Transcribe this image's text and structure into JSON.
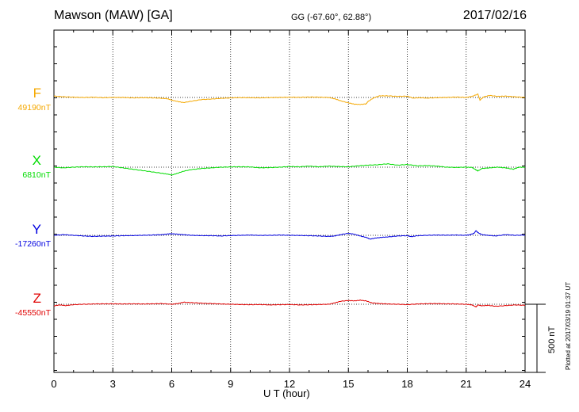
{
  "header": {
    "station": "Mawson (MAW)  [GA]",
    "coords": "GG (-67.60°,  62.88°)",
    "date": "2017/02/16"
  },
  "plotted_note": "Plotted at 2017/03/19 01:37  UT",
  "scale_label": "500 nT",
  "chart_data": {
    "type": "line",
    "xlabel": "U T (hour)",
    "x_ticks": [
      "0",
      "3",
      "6",
      "9",
      "12",
      "15",
      "18",
      "21",
      "24"
    ],
    "xlim": [
      0,
      24
    ],
    "grid": true,
    "scale_bar_nT": 500,
    "series": [
      {
        "name": "F",
        "baseline_label": "49190nT",
        "color": "#f5a800",
        "x": [
          0,
          0.5,
          1,
          1.5,
          2,
          2.5,
          3,
          3.5,
          4,
          4.5,
          5,
          5.5,
          5.8,
          6,
          6.3,
          6.6,
          7,
          7.5,
          8,
          8.5,
          9,
          9.5,
          10,
          10.5,
          11,
          11.5,
          12,
          12.5,
          13,
          13.5,
          14,
          14.3,
          14.6,
          15,
          15.3,
          15.6,
          15.9,
          16,
          16.3,
          16.6,
          17,
          17.5,
          18,
          18.3,
          18.6,
          19,
          19.5,
          20,
          20.5,
          21,
          21.3,
          21.6,
          21.7,
          21.9,
          22.2,
          22.6,
          23,
          23.5,
          24
        ],
        "y": [
          10,
          5,
          2,
          0,
          2,
          -2,
          0,
          0,
          -3,
          -2,
          -3,
          -6,
          -10,
          -20,
          -30,
          -38,
          -28,
          -16,
          -12,
          -7,
          -3,
          -1,
          -2,
          -3,
          -1,
          0,
          2,
          1,
          3,
          2,
          0,
          -10,
          -25,
          -40,
          -50,
          -52,
          -48,
          -30,
          -2,
          12,
          12,
          8,
          10,
          -5,
          -2,
          -5,
          -2,
          0,
          3,
          0,
          8,
          25,
          -20,
          5,
          15,
          8,
          10,
          5,
          0
        ]
      },
      {
        "name": "X",
        "baseline_label": "6810nT",
        "color": "#00dc00",
        "x": [
          0,
          0.5,
          1,
          1.5,
          2,
          2.5,
          3,
          3.5,
          4,
          4.5,
          5,
          5.5,
          5.8,
          6,
          6.3,
          6.6,
          7,
          7.5,
          8,
          8.5,
          9,
          9.5,
          10,
          10.5,
          11,
          11.5,
          12,
          12.5,
          13,
          13.5,
          14,
          14.5,
          15,
          15.5,
          16,
          16.5,
          17,
          17.5,
          18,
          18.5,
          19,
          19.5,
          20,
          20.5,
          21,
          21.3,
          21.5,
          21.6,
          21.8,
          22.2,
          22.6,
          23,
          23.4,
          23.7,
          24
        ],
        "y": [
          0,
          -5,
          0,
          3,
          2,
          3,
          5,
          -5,
          -15,
          -25,
          -35,
          -45,
          -52,
          -58,
          -45,
          -30,
          -18,
          -10,
          -5,
          0,
          2,
          3,
          2,
          -5,
          -3,
          0,
          5,
          3,
          8,
          3,
          8,
          5,
          3,
          10,
          15,
          18,
          25,
          15,
          20,
          10,
          12,
          8,
          0,
          -2,
          0,
          -2,
          -20,
          -28,
          -10,
          -5,
          0,
          -5,
          -15,
          0,
          0
        ]
      },
      {
        "name": "Y",
        "baseline_label": "-17260nT",
        "color": "#0000e0",
        "x": [
          0,
          0.5,
          1,
          1.5,
          2,
          2.5,
          3,
          3.5,
          4,
          4.5,
          5,
          5.5,
          5.8,
          6,
          6.3,
          6.6,
          7,
          7.5,
          8,
          8.5,
          9,
          9.5,
          10,
          10.5,
          11,
          11.5,
          12,
          12.5,
          13,
          13.5,
          14,
          14.3,
          14.6,
          15,
          15.3,
          15.6,
          15.9,
          16.1,
          16.4,
          16.7,
          17,
          17.5,
          18,
          18.2,
          18.5,
          19,
          19.5,
          20,
          20.5,
          21,
          21.2,
          21.4,
          21.5,
          21.6,
          21.8,
          22.1,
          22.5,
          23,
          23.5,
          24
        ],
        "y": [
          0,
          5,
          0,
          -5,
          -8,
          -6,
          -5,
          -3,
          -2,
          0,
          2,
          5,
          10,
          12,
          8,
          5,
          0,
          -2,
          -3,
          -5,
          -2,
          0,
          2,
          -1,
          0,
          2,
          0,
          -1,
          -3,
          -5,
          -8,
          -5,
          5,
          15,
          8,
          -5,
          -15,
          -28,
          -20,
          -15,
          -12,
          -5,
          -3,
          -10,
          -3,
          0,
          2,
          1,
          2,
          0,
          5,
          15,
          35,
          20,
          5,
          0,
          -5,
          5,
          0,
          2
        ]
      },
      {
        "name": "Z",
        "baseline_label": "-45550nT",
        "color": "#e00000",
        "x": [
          0,
          0.3,
          0.6,
          1,
          1.5,
          2,
          2.5,
          3,
          3.5,
          4,
          4.5,
          5,
          5.5,
          6,
          6.3,
          6.6,
          7,
          7.5,
          8,
          8.5,
          9,
          9.5,
          10,
          10.5,
          11,
          11.5,
          12,
          12.5,
          13,
          13.5,
          14,
          14.3,
          14.6,
          15,
          15.3,
          15.6,
          15.9,
          16.2,
          16.6,
          17,
          17.5,
          18,
          18.5,
          19,
          19.5,
          20,
          20.5,
          21,
          21.3,
          21.5,
          21.6,
          21.8,
          22.1,
          22.5,
          23,
          23.5,
          24
        ],
        "y": [
          -12,
          -5,
          -10,
          -3,
          0,
          2,
          3,
          3,
          2,
          3,
          2,
          3,
          5,
          0,
          5,
          15,
          12,
          8,
          5,
          2,
          0,
          -2,
          -3,
          -2,
          -5,
          -3,
          -2,
          -5,
          -4,
          -2,
          0,
          10,
          22,
          28,
          25,
          30,
          25,
          10,
          5,
          2,
          0,
          -3,
          2,
          4,
          5,
          3,
          2,
          0,
          -5,
          -20,
          -5,
          -12,
          -8,
          -15,
          -10,
          -5,
          -8
        ]
      }
    ]
  }
}
